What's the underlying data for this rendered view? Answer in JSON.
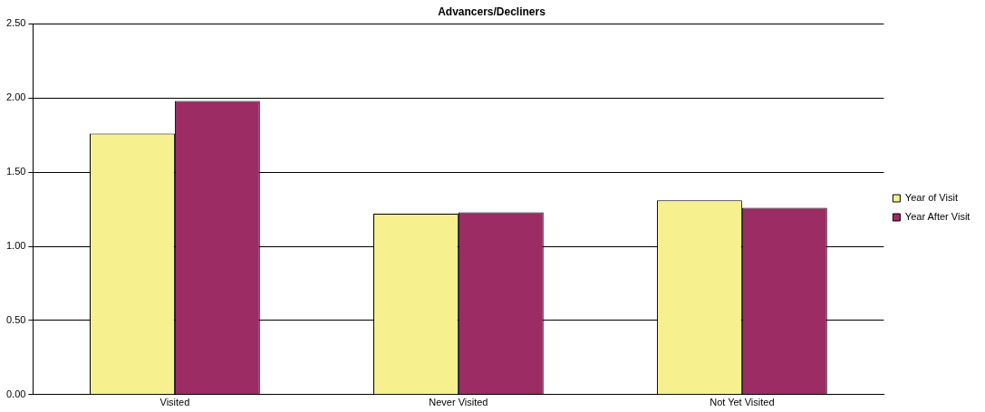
{
  "chart_data": {
    "type": "bar",
    "title": "Advancers/Decliners",
    "categories": [
      "Visited",
      "Never Visited",
      "Not Yet Visited"
    ],
    "series": [
      {
        "name": "Year of Visit",
        "color": "#f7f08f",
        "values": [
          1.76,
          1.22,
          1.31
        ]
      },
      {
        "name": "Year After Visit",
        "color": "#9b2c64",
        "values": [
          1.98,
          1.23,
          1.26
        ]
      }
    ],
    "ylim": [
      0,
      2.5
    ],
    "yticks": [
      {
        "value": 0,
        "label": "0.00"
      },
      {
        "value": 0.5,
        "label": "0.50"
      },
      {
        "value": 1,
        "label": "1.00"
      },
      {
        "value": 1.5,
        "label": "1.50"
      },
      {
        "value": 2,
        "label": "2.00"
      },
      {
        "value": 2.5,
        "label": "2.50"
      }
    ],
    "grid": "y",
    "legend": "right"
  }
}
